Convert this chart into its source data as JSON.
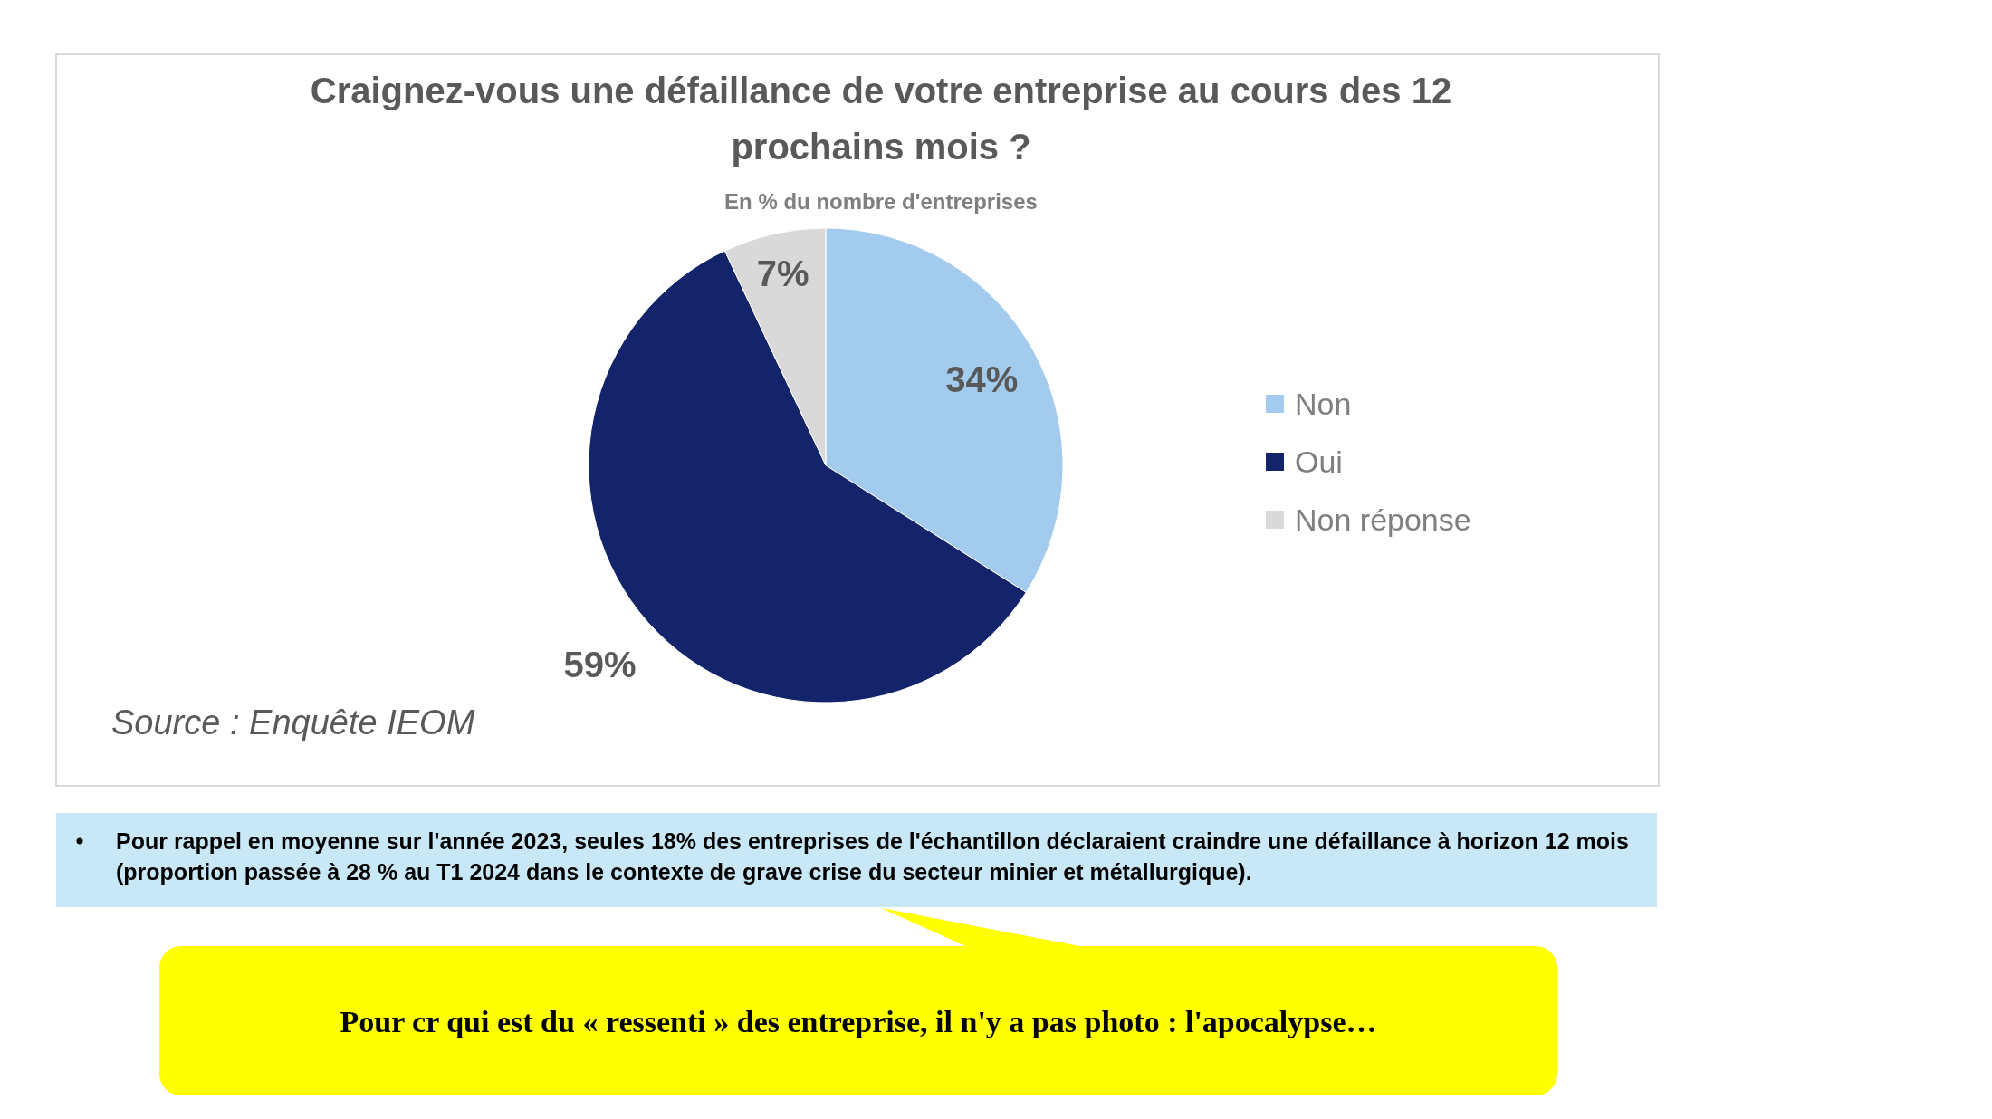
{
  "chart_data": {
    "type": "pie",
    "title": "Craignez-vous une défaillance de votre entreprise au cours des 12 prochains mois ?",
    "subtitle": "En % du nombre d'entreprises",
    "categories": [
      "Non",
      "Oui",
      "Non réponse"
    ],
    "values": [
      34,
      59,
      7
    ],
    "colors": [
      "#a3cbee",
      "#14246b",
      "#d9d9d9"
    ],
    "value_labels": [
      "34%",
      "59%",
      "7%"
    ],
    "legend": "right",
    "annotations": [
      "Source : Enquête IEOM",
      "Pour rappel en moyenne sur l'année 2023, seules 18% des entreprises de l'échantillon déclaraient craindre une défaillance à horizon 12 mois (proportion passée à 28 % au T1 2024 dans le contexte de grave crise du secteur minier et métallurgique).",
      "Pour cr qui est du « ressenti » des entreprise, il n'y a pas photo : l'apocalypse…"
    ]
  }
}
